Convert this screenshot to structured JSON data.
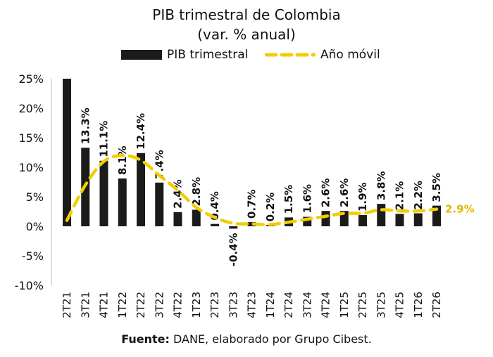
{
  "chart_data": {
    "type": "bar",
    "title": "PIB trimestral de Colombia",
    "subtitle": "(var. % anual)",
    "categories": [
      "2T21",
      "3T21",
      "4T21",
      "1T22",
      "2T22",
      "3T22",
      "4T22",
      "1T23",
      "2T23",
      "3T23",
      "4T23",
      "1T24",
      "2T24",
      "3T24",
      "4T24",
      "1T25",
      "2T25",
      "3T25",
      "4T25",
      "1T26",
      "2T26"
    ],
    "series": [
      {
        "name": "PIB trimestral",
        "type": "bar",
        "color": "#1b1b1b",
        "values": [
          25.0,
          13.3,
          11.1,
          8.1,
          12.4,
          7.4,
          2.4,
          2.8,
          0.4,
          -0.4,
          0.7,
          0.2,
          1.5,
          1.6,
          2.6,
          2.6,
          1.9,
          3.8,
          2.1,
          2.2,
          3.5
        ],
        "data_labels": [
          "",
          "13.3%",
          "11.1%",
          "8.1%",
          "12.4%",
          "7.4%",
          "2.4%",
          "2.8%",
          "0.4%",
          "-0.4%",
          "0.7%",
          "0.2%",
          "1.5%",
          "1.6%",
          "2.6%",
          "2.6%",
          "1.9%",
          "3.8%",
          "2.1%",
          "2.2%",
          "3.5%"
        ]
      },
      {
        "name": "Año móvil",
        "type": "line",
        "style": "dashed",
        "color": "#f2cd00",
        "values": [
          1.0,
          7.0,
          11.0,
          12.0,
          11.2,
          8.6,
          6.1,
          3.2,
          1.5,
          0.5,
          0.4,
          0.3,
          0.7,
          1.2,
          1.7,
          2.2,
          2.2,
          2.8,
          2.6,
          2.6,
          2.9
        ],
        "end_label": "2.9%"
      }
    ],
    "ylim": [
      -10,
      25
    ],
    "yticks": [
      25,
      20,
      15,
      10,
      5,
      0,
      -5,
      -10
    ],
    "ytick_labels": [
      "25%",
      "20%",
      "15%",
      "10%",
      "5%",
      "0%",
      "-5%",
      "-10%"
    ],
    "legend_position": "top-center",
    "grid": false
  },
  "source": {
    "prefix": "Fuente:",
    "text": " DANE, elaborado por Grupo Cibest."
  }
}
